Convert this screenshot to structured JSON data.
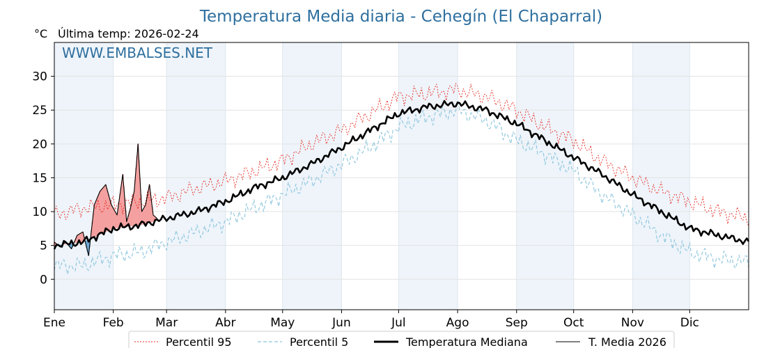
{
  "chart_data": {
    "type": "line",
    "title": "Temperatura Media diaria - Cehegín (El Chaparral)",
    "unit_label": "°C",
    "last_temp_label": "Última temp: 2026-02-24",
    "watermark": "WWW.EMBALSES.NET",
    "xlabel": "",
    "ylabel": "°C",
    "ylim": [
      -4.5,
      35
    ],
    "xlim_days": [
      0,
      365
    ],
    "y_ticks": [
      0,
      5,
      10,
      15,
      20,
      25,
      30
    ],
    "months": [
      "Ene",
      "Feb",
      "Mar",
      "Abr",
      "May",
      "Jun",
      "Jul",
      "Ago",
      "Sep",
      "Oct",
      "Nov",
      "Dic"
    ],
    "month_start_days": [
      0,
      31,
      59,
      90,
      120,
      151,
      181,
      212,
      243,
      273,
      304,
      334
    ],
    "series": [
      {
        "name": "Percentil 95",
        "color": "#e8281f",
        "style": "dotted",
        "days": [
          0,
          15,
          31,
          45,
          59,
          75,
          90,
          105,
          120,
          135,
          151,
          166,
          181,
          196,
          212,
          227,
          243,
          258,
          273,
          288,
          304,
          319,
          334,
          349,
          365
        ],
        "values": [
          9.5,
          10.5,
          11.0,
          11.5,
          12.0,
          13.5,
          14.5,
          16.0,
          17.5,
          20.0,
          22.0,
          24.5,
          27.0,
          27.5,
          28.0,
          27.0,
          25.0,
          22.5,
          20.5,
          17.5,
          15.0,
          13.0,
          11.5,
          10.0,
          9.0
        ]
      },
      {
        "name": "Percentil 5",
        "color": "#8cc5dc",
        "style": "dashed",
        "days": [
          0,
          15,
          31,
          45,
          59,
          75,
          90,
          105,
          120,
          135,
          151,
          166,
          181,
          196,
          212,
          227,
          243,
          258,
          273,
          288,
          304,
          319,
          334,
          349,
          365
        ],
        "values": [
          2.0,
          2.0,
          3.5,
          4.0,
          5.5,
          7.0,
          8.5,
          10.5,
          12.5,
          14.5,
          17.0,
          19.5,
          22.5,
          24.0,
          25.0,
          23.5,
          20.5,
          18.5,
          16.0,
          12.5,
          9.5,
          6.5,
          4.0,
          3.0,
          2.5
        ]
      },
      {
        "name": "Temperatura Mediana",
        "color": "#000000",
        "style": "thick",
        "days": [
          0,
          15,
          31,
          45,
          59,
          75,
          90,
          105,
          120,
          135,
          151,
          166,
          181,
          196,
          212,
          227,
          243,
          258,
          273,
          288,
          304,
          319,
          334,
          349,
          365
        ],
        "values": [
          5.0,
          5.5,
          7.5,
          8.0,
          9.0,
          10.0,
          11.5,
          13.5,
          15.0,
          17.0,
          19.5,
          22.0,
          24.5,
          25.5,
          26.0,
          25.0,
          23.0,
          20.5,
          18.0,
          15.5,
          12.5,
          10.0,
          7.5,
          6.5,
          5.5
        ]
      },
      {
        "name": "T. Media 2026",
        "color": "#000000",
        "style": "thin",
        "days": [
          0,
          3,
          6,
          9,
          12,
          15,
          18,
          21,
          24,
          27,
          30,
          33,
          36,
          38,
          40,
          42,
          44,
          46,
          48,
          50,
          52,
          54
        ],
        "values": [
          5.5,
          4.8,
          5.5,
          4.5,
          6.5,
          7.0,
          3.5,
          11.0,
          13.0,
          14.0,
          11.0,
          9.5,
          15.5,
          8.5,
          10.5,
          13.0,
          20.0,
          10.0,
          11.0,
          14.0,
          9.5,
          9.0
        ]
      }
    ],
    "legend": [
      "Percentil 95",
      "Percentil 5",
      "Temperatura Mediana",
      "T. Media 2026"
    ],
    "legend_position": "bottom-center",
    "colors": {
      "title": "#2e6f9e",
      "month_shade": "#eef4fa",
      "above_fill": "#f4a0a0",
      "below_fill": "#6fa8d6"
    }
  }
}
